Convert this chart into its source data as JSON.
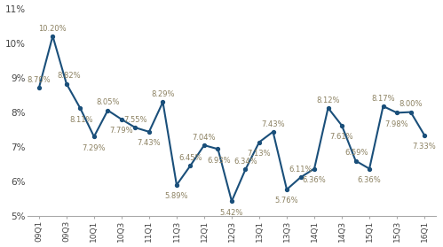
{
  "values": [
    8.7,
    10.2,
    8.82,
    8.11,
    7.29,
    8.05,
    7.79,
    7.55,
    7.43,
    8.29,
    5.89,
    6.45,
    7.04,
    6.93,
    5.42,
    6.34,
    7.13,
    7.43,
    5.76,
    6.11,
    6.36,
    8.12,
    7.61,
    6.59,
    6.36,
    8.17,
    7.98,
    8.0,
    7.33
  ],
  "labels": [
    "8.70%",
    "10.20%",
    "8.82%",
    "8.11%",
    "7.29%",
    "8.05%",
    "7.79%",
    "7.55%",
    "7.43%",
    "8.29%",
    "5.89%",
    "6.45%",
    "7.04%",
    "6.93%",
    "5.42%",
    "6.34%",
    "7.13%",
    "7.43%",
    "5.76%",
    "6.11%",
    "6.36%",
    "8.12%",
    "7.61%",
    "6.59%",
    "6.36%",
    "8.17%",
    "7.98%",
    "8.00%",
    "7.33%"
  ],
  "selected_ticks": [
    0,
    2,
    4,
    6,
    8,
    10,
    12,
    14,
    16,
    18,
    20,
    22,
    24,
    26,
    28
  ],
  "selected_tick_labels": [
    "09Q1",
    "09Q3",
    "10Q1",
    "10Q3",
    "11Q1",
    "11Q3",
    "12Q1",
    "12Q3",
    "13Q1",
    "13Q3",
    "14Q1",
    "14Q3",
    "15Q1",
    "15Q3",
    "16Q1"
  ],
  "line_color": "#1a4f7a",
  "marker_color": "#1a4f7a",
  "ylim": [
    5.0,
    11.0
  ],
  "yticks": [
    5,
    6,
    7,
    8,
    9,
    10,
    11
  ],
  "ytick_labels": [
    "5%",
    "6%",
    "7%",
    "8%",
    "9%",
    "10%",
    "11%"
  ],
  "bg_color": "#ffffff",
  "label_fontsize": 6.0,
  "label_color": "#8B8060"
}
